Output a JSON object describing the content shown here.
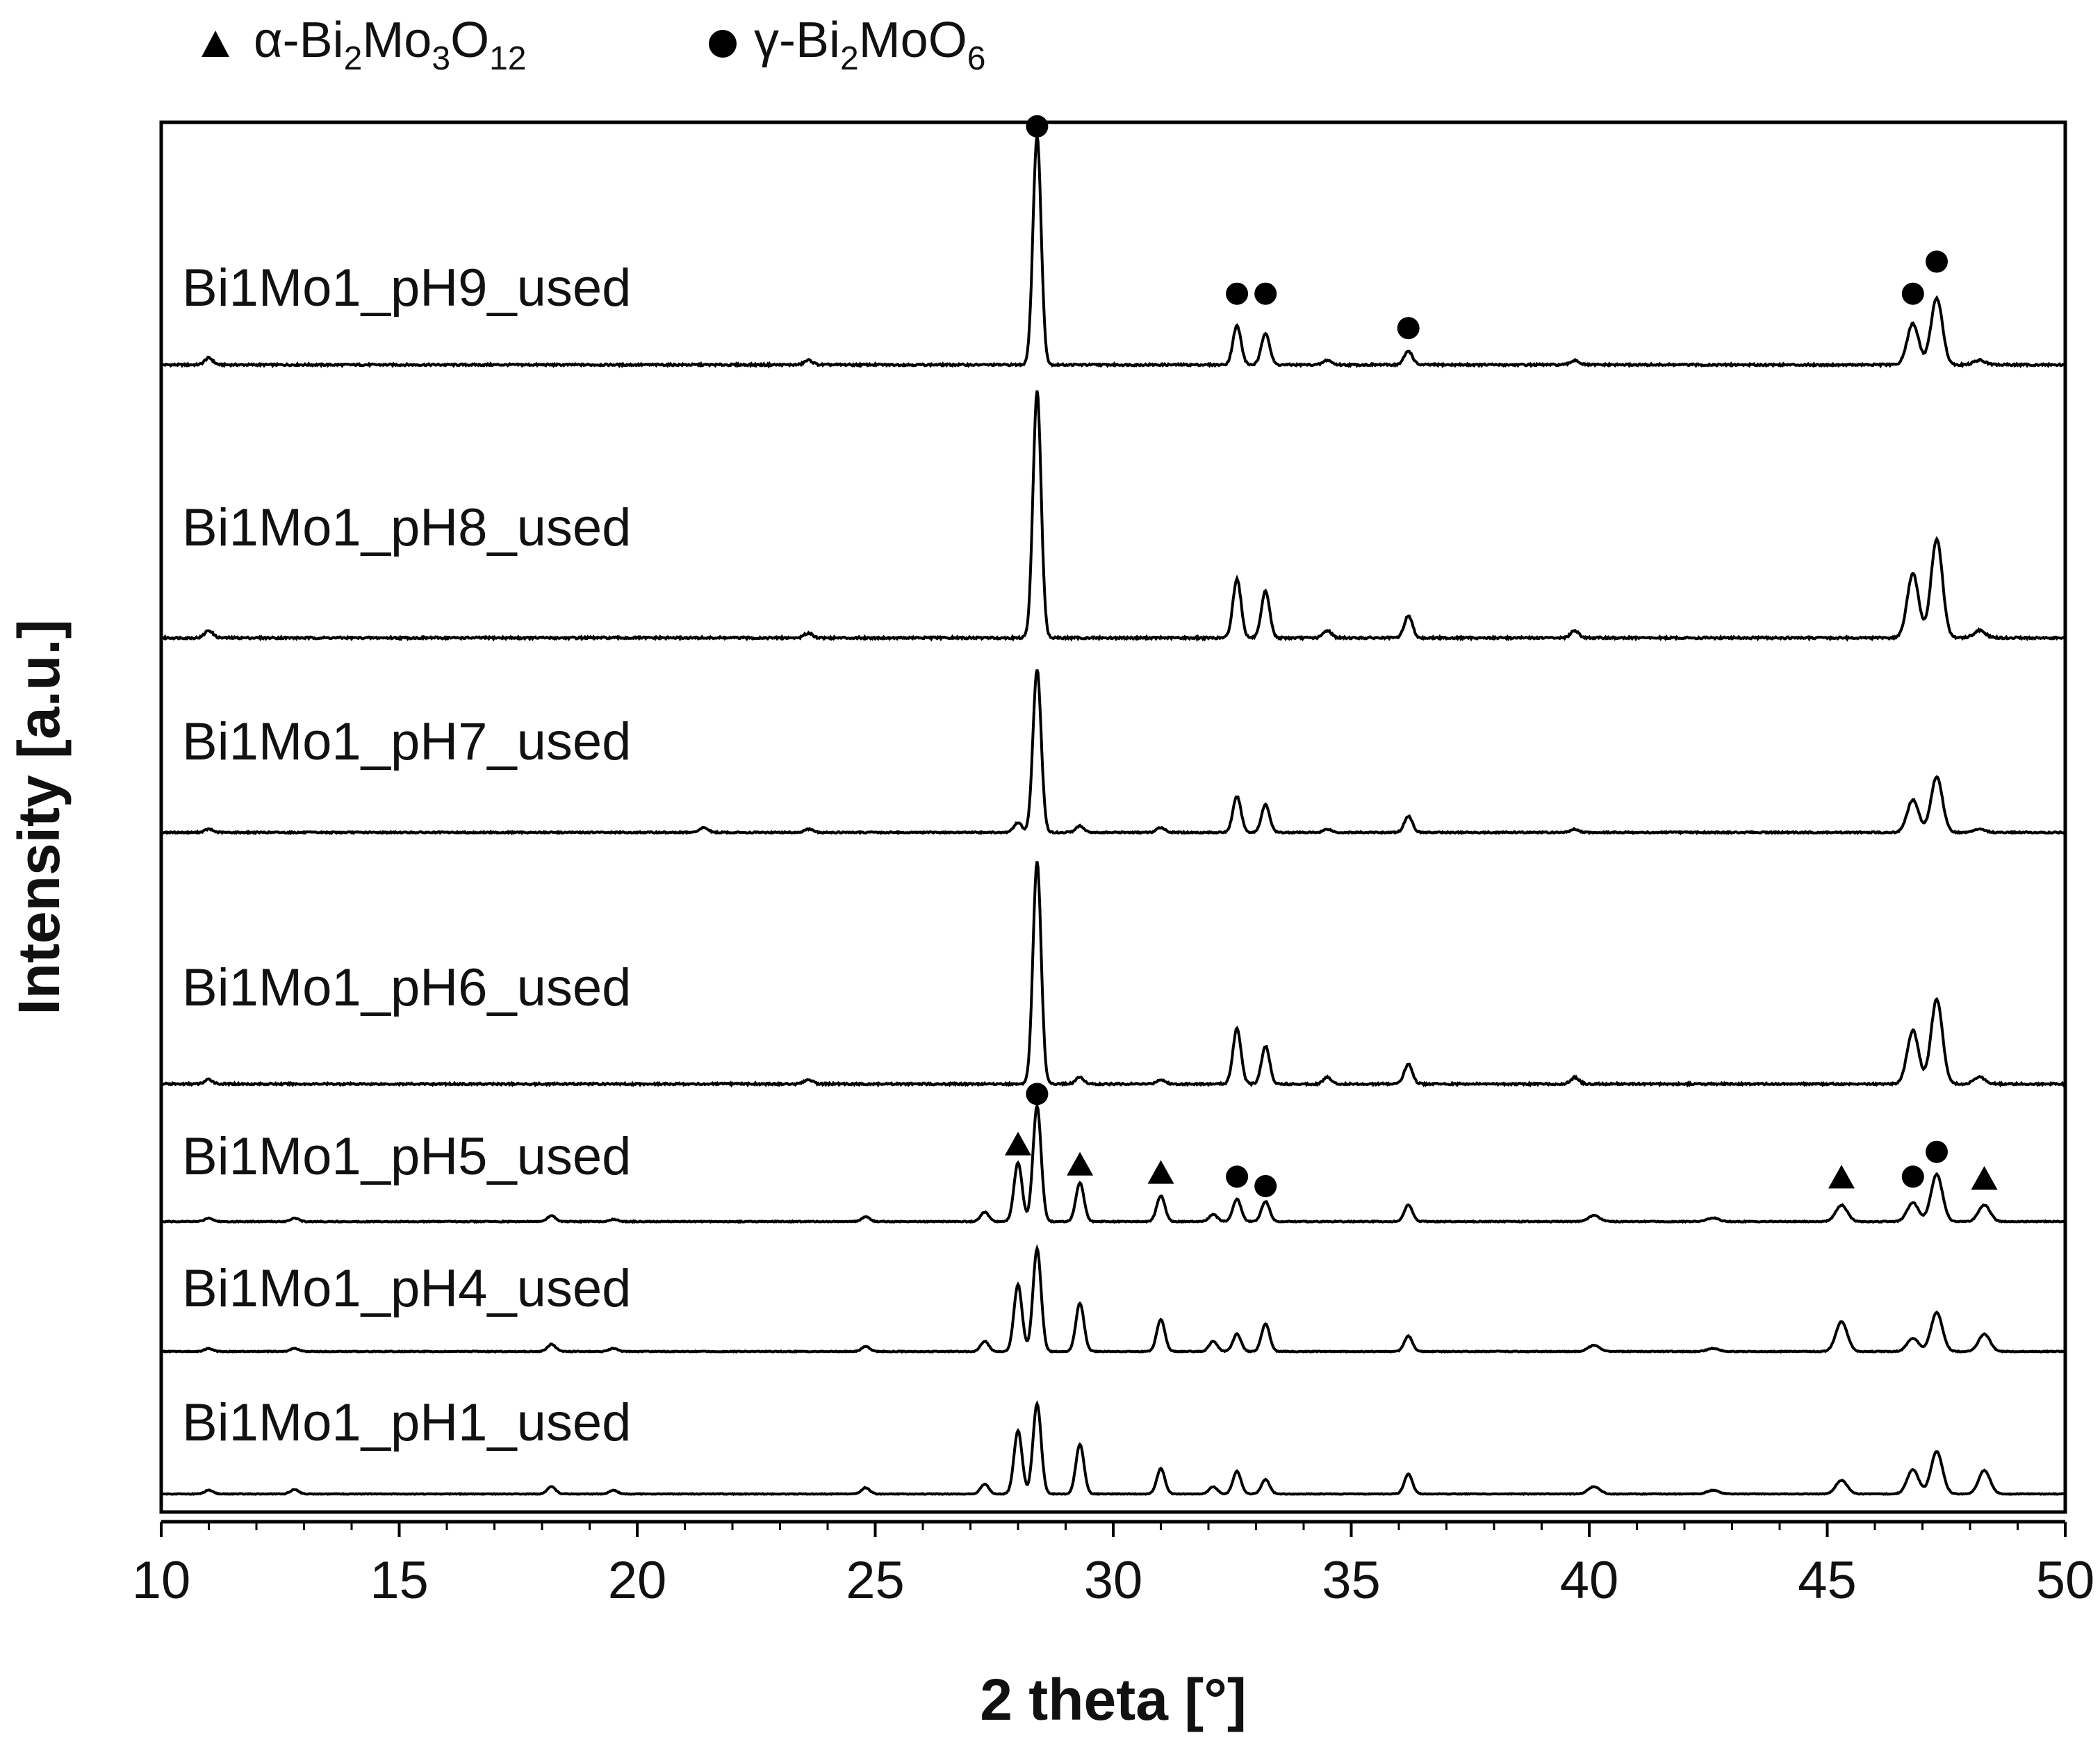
{
  "chart_data": {
    "type": "line",
    "xlabel": "2 theta [°]",
    "ylabel": "Intensity [a.u.]",
    "xlim": [
      10,
      50
    ],
    "xticks": [
      "10",
      "15",
      "20",
      "25",
      "30",
      "35",
      "40",
      "45",
      "50"
    ],
    "legend": {
      "placement": "top-left, above plot",
      "entries": [
        {
          "marker": "triangle",
          "label": "α-Bi",
          "sub1": "2",
          "mid1": "Mo",
          "sub2": "3",
          "mid2": "O",
          "sub3": "12"
        },
        {
          "marker": "circle",
          "label": "γ-Bi",
          "sub1": "2",
          "mid1": "MoO",
          "sub2": "6",
          "mid2": "",
          "sub3": ""
        }
      ]
    },
    "series": [
      {
        "name": "Bi1Mo1_pH9_used",
        "peaks": [
          [
            11.0,
            0.03
          ],
          [
            23.6,
            0.02
          ],
          [
            28.4,
            1.0
          ],
          [
            32.6,
            0.17
          ],
          [
            33.2,
            0.14
          ],
          [
            34.5,
            0.02
          ],
          [
            36.2,
            0.06
          ],
          [
            39.7,
            0.02
          ],
          [
            46.8,
            0.18
          ],
          [
            47.3,
            0.29
          ],
          [
            48.2,
            0.02
          ]
        ],
        "markers": [
          {
            "x": 28.4,
            "y": 1.04,
            "type": "circle"
          },
          {
            "x": 32.6,
            "y": 0.31,
            "type": "circle"
          },
          {
            "x": 33.2,
            "y": 0.31,
            "type": "circle"
          },
          {
            "x": 36.2,
            "y": 0.16,
            "type": "circle"
          },
          {
            "x": 46.8,
            "y": 0.31,
            "type": "circle"
          },
          {
            "x": 47.3,
            "y": 0.45,
            "type": "circle"
          }
        ]
      },
      {
        "name": "Bi1Mo1_pH8_used",
        "peaks": [
          [
            11.0,
            0.03
          ],
          [
            23.6,
            0.02
          ],
          [
            28.4,
            1.0
          ],
          [
            32.6,
            0.24
          ],
          [
            33.2,
            0.19
          ],
          [
            34.5,
            0.03
          ],
          [
            36.2,
            0.09
          ],
          [
            39.7,
            0.03
          ],
          [
            46.8,
            0.26
          ],
          [
            47.3,
            0.4
          ],
          [
            48.2,
            0.03
          ]
        ],
        "markers": []
      },
      {
        "name": "Bi1Mo1_pH7_used",
        "peaks": [
          [
            11.0,
            0.02
          ],
          [
            21.4,
            0.03
          ],
          [
            23.6,
            0.02
          ],
          [
            28.0,
            0.06
          ],
          [
            28.4,
            1.0
          ],
          [
            29.3,
            0.04
          ],
          [
            31.0,
            0.03
          ],
          [
            32.6,
            0.22
          ],
          [
            33.2,
            0.17
          ],
          [
            34.5,
            0.02
          ],
          [
            36.2,
            0.1
          ],
          [
            39.7,
            0.02
          ],
          [
            46.8,
            0.2
          ],
          [
            47.3,
            0.34
          ],
          [
            48.2,
            0.02
          ]
        ],
        "markers": []
      },
      {
        "name": "Bi1Mo1_pH6_used",
        "peaks": [
          [
            11.0,
            0.02
          ],
          [
            23.6,
            0.02
          ],
          [
            28.4,
            1.0
          ],
          [
            29.3,
            0.03
          ],
          [
            31.0,
            0.02
          ],
          [
            32.6,
            0.25
          ],
          [
            33.2,
            0.17
          ],
          [
            34.5,
            0.03
          ],
          [
            36.2,
            0.09
          ],
          [
            39.7,
            0.03
          ],
          [
            46.8,
            0.24
          ],
          [
            47.3,
            0.38
          ],
          [
            48.2,
            0.03
          ]
        ],
        "markers": []
      },
      {
        "name": "Bi1Mo1_pH5_used",
        "peaks": [
          [
            11.0,
            0.03
          ],
          [
            12.8,
            0.03
          ],
          [
            18.2,
            0.05
          ],
          [
            19.5,
            0.02
          ],
          [
            24.8,
            0.04
          ],
          [
            27.3,
            0.08
          ],
          [
            28.0,
            0.5
          ],
          [
            28.4,
            0.98
          ],
          [
            29.3,
            0.33
          ],
          [
            31.0,
            0.22
          ],
          [
            32.1,
            0.06
          ],
          [
            32.6,
            0.19
          ],
          [
            33.2,
            0.17
          ],
          [
            36.2,
            0.14
          ],
          [
            40.1,
            0.05
          ],
          [
            42.6,
            0.03
          ],
          [
            45.3,
            0.14
          ],
          [
            46.8,
            0.16
          ],
          [
            47.3,
            0.4
          ],
          [
            48.3,
            0.14
          ]
        ],
        "markers": [
          {
            "x": 28.0,
            "y": 0.66,
            "type": "triangle"
          },
          {
            "x": 28.4,
            "y": 1.08,
            "type": "circle"
          },
          {
            "x": 29.3,
            "y": 0.49,
            "type": "triangle"
          },
          {
            "x": 31.0,
            "y": 0.42,
            "type": "triangle"
          },
          {
            "x": 32.6,
            "y": 0.38,
            "type": "circle"
          },
          {
            "x": 33.2,
            "y": 0.3,
            "type": "circle"
          },
          {
            "x": 45.3,
            "y": 0.38,
            "type": "triangle"
          },
          {
            "x": 46.8,
            "y": 0.38,
            "type": "circle"
          },
          {
            "x": 47.3,
            "y": 0.59,
            "type": "circle"
          },
          {
            "x": 48.3,
            "y": 0.37,
            "type": "triangle"
          }
        ]
      },
      {
        "name": "Bi1Mo1_pH4_used",
        "peaks": [
          [
            11.0,
            0.03
          ],
          [
            12.8,
            0.03
          ],
          [
            18.2,
            0.07
          ],
          [
            19.5,
            0.03
          ],
          [
            24.8,
            0.05
          ],
          [
            27.3,
            0.1
          ],
          [
            28.0,
            0.65
          ],
          [
            28.4,
            1.0
          ],
          [
            29.3,
            0.47
          ],
          [
            31.0,
            0.31
          ],
          [
            32.1,
            0.1
          ],
          [
            32.6,
            0.17
          ],
          [
            33.2,
            0.27
          ],
          [
            36.2,
            0.15
          ],
          [
            40.1,
            0.06
          ],
          [
            42.6,
            0.03
          ],
          [
            45.3,
            0.29
          ],
          [
            46.8,
            0.13
          ],
          [
            47.3,
            0.38
          ],
          [
            48.3,
            0.17
          ]
        ],
        "markers": []
      },
      {
        "name": "Bi1Mo1_pH1_used",
        "peaks": [
          [
            11.0,
            0.04
          ],
          [
            12.8,
            0.05
          ],
          [
            18.2,
            0.08
          ],
          [
            19.5,
            0.04
          ],
          [
            24.8,
            0.07
          ],
          [
            27.3,
            0.11
          ],
          [
            28.0,
            0.7
          ],
          [
            28.4,
            1.0
          ],
          [
            29.3,
            0.55
          ],
          [
            31.0,
            0.28
          ],
          [
            32.1,
            0.08
          ],
          [
            32.6,
            0.25
          ],
          [
            33.2,
            0.16
          ],
          [
            36.2,
            0.22
          ],
          [
            40.1,
            0.08
          ],
          [
            42.6,
            0.04
          ],
          [
            45.3,
            0.15
          ],
          [
            46.8,
            0.27
          ],
          [
            47.3,
            0.47
          ],
          [
            48.3,
            0.26
          ]
        ],
        "markers": []
      }
    ]
  }
}
